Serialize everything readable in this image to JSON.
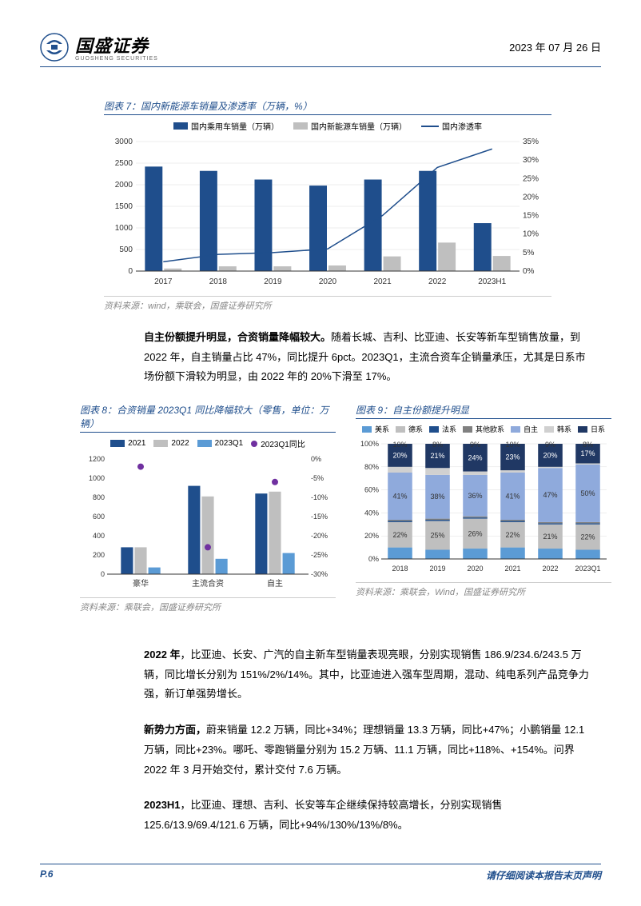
{
  "header": {
    "company_name": "国盛证券",
    "company_sub": "GUOSHENG SECURITIES",
    "date": "2023 年 07 月 26 日"
  },
  "chart7": {
    "title": "图表 7：国内新能源车销量及渗透率（万辆，%）",
    "type": "bar+line",
    "legend": [
      "国内乘用车销量（万辆）",
      "国内新能源车销量（万辆）",
      "国内渗透率"
    ],
    "colors": {
      "bar1": "#1f4e8c",
      "bar2": "#bfbfbf",
      "line": "#1f4e8c"
    },
    "categories": [
      "2017",
      "2018",
      "2019",
      "2020",
      "2021",
      "2022",
      "2023H1"
    ],
    "bar1_values": [
      2420,
      2320,
      2120,
      1980,
      2120,
      2320,
      1110
    ],
    "bar2_values": [
      60,
      110,
      110,
      130,
      340,
      660,
      350
    ],
    "line_values": [
      2.5,
      4.5,
      5,
      6,
      15,
      28,
      33
    ],
    "y1_max": 3000,
    "y1_step": 500,
    "y2_max": 35,
    "y2_step": 5,
    "source": "资料来源：wind，乘联会，国盛证券研究所"
  },
  "para1": {
    "bold": "自主份额提升明显，合资销量降幅较大。",
    "rest": "随着长城、吉利、比亚迪、长安等新车型销售放量，到 2022 年，自主销量占比 47%，同比提升 6pct。2023Q1，主流合资车企销量承压，尤其是日系市场份额下滑较为明显，由 2022 年的 20%下滑至 17%。"
  },
  "chart8": {
    "title": "图表 8：合资销量 2023Q1 同比降幅较大（零售，单位：万辆）",
    "type": "bar+scatter",
    "legend": [
      "2021",
      "2022",
      "2023Q1",
      "2023Q1同比"
    ],
    "colors": {
      "b1": "#1f4e8c",
      "b2": "#bfbfbf",
      "b3": "#5b9bd5",
      "dot": "#7030a0"
    },
    "categories": [
      "豪华",
      "主流合资",
      "自主"
    ],
    "b1": [
      280,
      920,
      840
    ],
    "b2": [
      280,
      810,
      860
    ],
    "b3": [
      70,
      160,
      220
    ],
    "dots": [
      -2,
      -23,
      -6
    ],
    "y1_max": 1200,
    "y1_step": 200,
    "y2_min": -30,
    "y2_max": 0,
    "y2_step": 5,
    "source": "资料来源：乘联会，国盛证券研究所"
  },
  "chart9": {
    "title": "图表 9：自主份额提升明显",
    "type": "stacked-bar",
    "categories": [
      "2018",
      "2019",
      "2020",
      "2021",
      "2022",
      "2023Q1"
    ],
    "legend": [
      "美系",
      "德系",
      "法系",
      "其他欧系",
      "自主",
      "韩系",
      "日系"
    ],
    "colors": [
      "#5b9bd5",
      "#bfbfbf",
      "#1f4e8c",
      "#808080",
      "#8faadc",
      "#d0d0d0",
      "#203864"
    ],
    "top_labels": [
      "10%",
      "8%",
      "9%",
      "10%",
      "9%",
      "8%"
    ],
    "mid1_labels": [
      "22%",
      "25%",
      "26%",
      "22%",
      "21%",
      "22%"
    ],
    "mid2_labels": [
      "41%",
      "38%",
      "36%",
      "41%",
      "47%",
      "50%"
    ],
    "bot_labels": [
      "20%",
      "21%",
      "24%",
      "23%",
      "20%",
      "17%"
    ],
    "stacks": [
      [
        10,
        22,
        1,
        1,
        41,
        5,
        20
      ],
      [
        8,
        25,
        1,
        1,
        38,
        6,
        21
      ],
      [
        9,
        26,
        1,
        1,
        36,
        3,
        24
      ],
      [
        10,
        22,
        1,
        1,
        41,
        2,
        23
      ],
      [
        9,
        21,
        1,
        1,
        47,
        1,
        20
      ],
      [
        8,
        22,
        1,
        1,
        50,
        1,
        17
      ]
    ],
    "y_max": 100,
    "y_step": 20,
    "source": "资料来源：乘联会，Wind，国盛证券研究所"
  },
  "para2": "2022 年，比亚迪、长安、广汽的自主新车型销量表现亮眼，分别实现销售 186.9/234.6/243.5 万辆，同比增长分别为 151%/2%/14%。其中，比亚迪进入强车型周期，混动、纯电系列产品竞争力强，新订单强势增长。",
  "para2_bold": "2022 年",
  "para3": "新势力方面，蔚来销量 12.2 万辆，同比+34%；理想销量 13.3 万辆，同比+47%；小鹏销量 12.1 万辆，同比+23%。哪吒、零跑销量分别为 15.2 万辆、11.1 万辆，同比+118%、+154%。问界 2022 年 3 月开始交付，累计交付 7.6 万辆。",
  "para3_bold": "新势力方面，",
  "para4": "2023H1，比亚迪、理想、吉利、长安等车企继续保持较高增长，分别实现销售 125.6/13.9/69.4/121.6 万辆，同比+94%/130%/13%/8%。",
  "para4_bold": "2023H1",
  "footer": {
    "page": "P.6",
    "disclaimer": "请仔细阅读本报告末页声明"
  }
}
